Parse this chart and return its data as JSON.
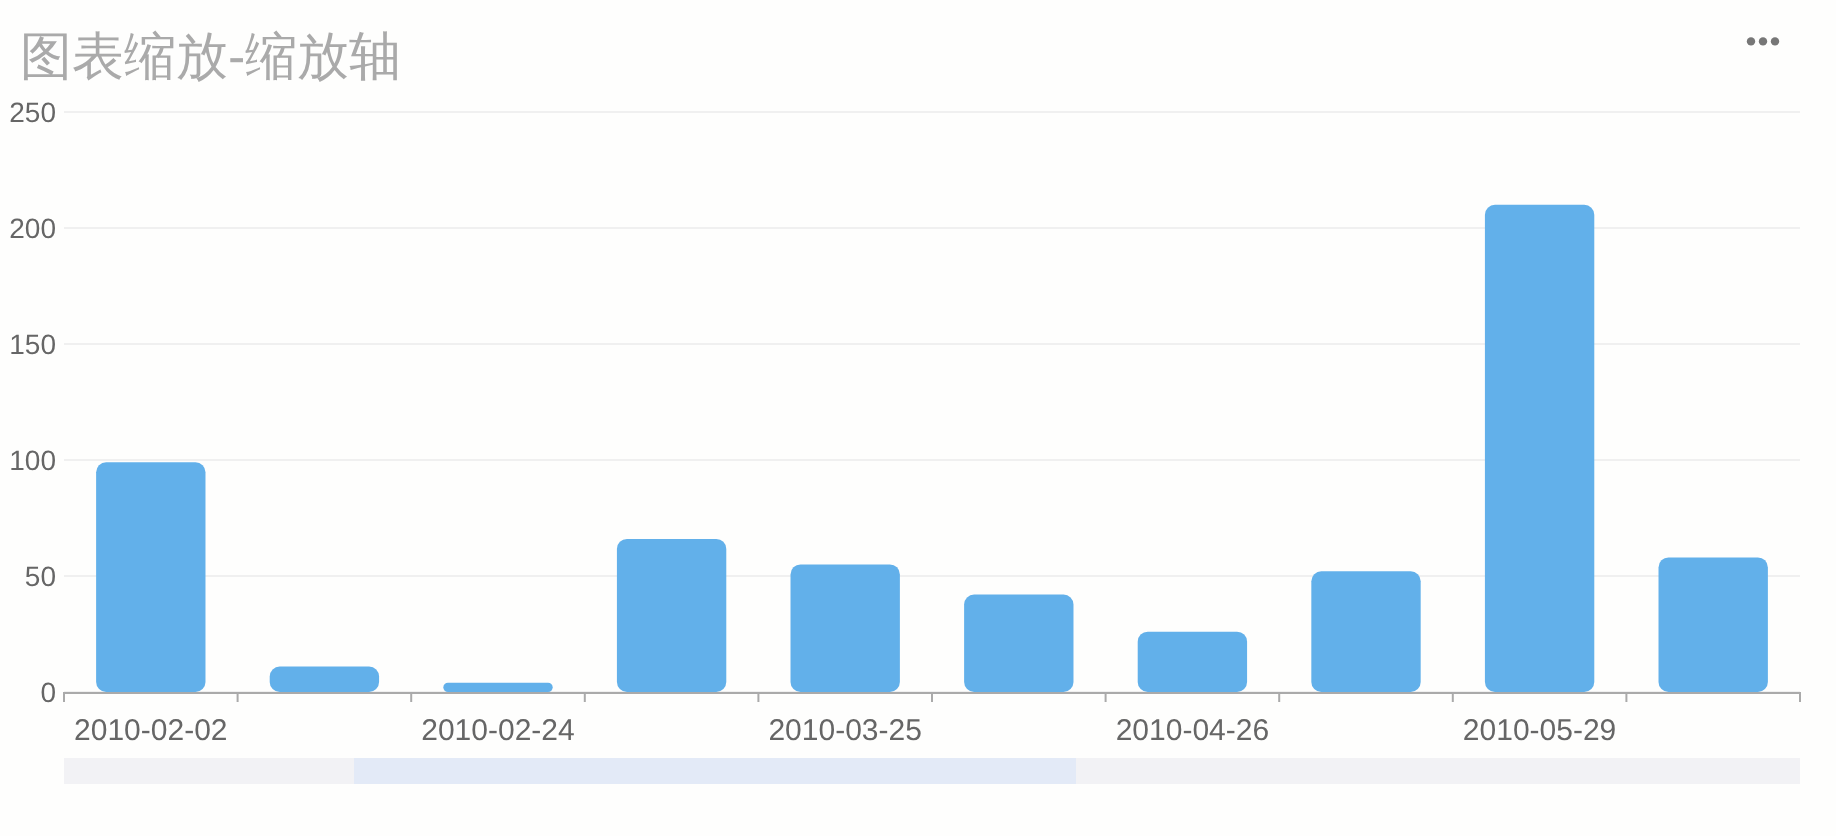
{
  "chart_data": {
    "type": "bar",
    "title": "图表缩放-缩放轴",
    "categories": [
      "2010-02-02",
      null,
      "2010-02-24",
      null,
      "2010-03-25",
      null,
      "2010-04-26",
      null,
      "2010-05-29",
      null
    ],
    "values": [
      99,
      11,
      4,
      66,
      55,
      42,
      26,
      52,
      210,
      58
    ],
    "color": "#62b0ea",
    "ylim": [
      0,
      250
    ],
    "yticks": [
      0,
      50,
      100,
      150,
      200,
      250
    ],
    "grid": "y"
  }
}
